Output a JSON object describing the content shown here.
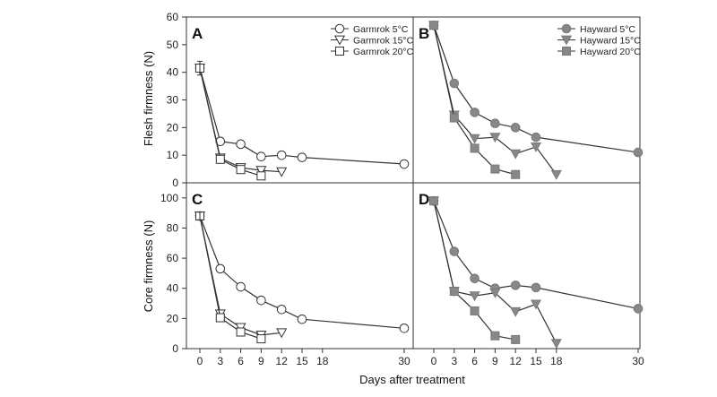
{
  "figure": {
    "xlabel": "Days after treatment",
    "ylabel_top": "Flesh firmness (N)",
    "ylabel_bottom": "Core firmness (N)"
  },
  "chart_data": [
    {
      "panel": "A",
      "type": "line",
      "title": "",
      "xlabel": "",
      "ylabel": "Flesh firmness (N)",
      "xticks": [
        0,
        3,
        6,
        9,
        12,
        15,
        18,
        30
      ],
      "yticks": [
        0,
        10,
        20,
        30,
        40,
        50,
        60
      ],
      "ylim": [
        0,
        60
      ],
      "legend": "top-right",
      "series": [
        {
          "name": "Garmrok 5°C",
          "marker": "circle-open",
          "x": [
            0,
            3,
            6,
            9,
            12,
            15,
            30
          ],
          "values": [
            41.5,
            15,
            14,
            9.5,
            10,
            9.2,
            6.8
          ]
        },
        {
          "name": "Garmrok 15°C",
          "marker": "triangle-open",
          "x": [
            0,
            3,
            6,
            9,
            12
          ],
          "values": [
            41.5,
            9,
            5.5,
            4.5,
            4
          ]
        },
        {
          "name": "Garmrok 20°C",
          "marker": "square-open",
          "x": [
            0,
            3,
            6,
            9
          ],
          "values": [
            41.5,
            8.5,
            4.8,
            2.5
          ]
        }
      ]
    },
    {
      "panel": "B",
      "type": "line",
      "title": "",
      "xlabel": "",
      "ylabel": "",
      "xticks": [
        0,
        3,
        6,
        9,
        12,
        15,
        18,
        30
      ],
      "ylim": [
        0,
        60
      ],
      "legend": "top-right",
      "series": [
        {
          "name": "Hayward 5°C",
          "marker": "circle-filled",
          "x": [
            0,
            3,
            6,
            9,
            12,
            15,
            30
          ],
          "values": [
            57,
            36,
            25.5,
            21.5,
            20,
            16.5,
            11
          ]
        },
        {
          "name": "Hayward 15°C",
          "marker": "triangle-filled",
          "x": [
            0,
            3,
            6,
            9,
            12,
            15,
            18
          ],
          "values": [
            57,
            24.5,
            16,
            16.5,
            10.5,
            13,
            3
          ]
        },
        {
          "name": "Hayward 20°C",
          "marker": "square-filled",
          "x": [
            0,
            3,
            6,
            9,
            12
          ],
          "values": [
            57,
            23.5,
            12.5,
            5,
            3
          ]
        }
      ]
    },
    {
      "panel": "C",
      "type": "line",
      "title": "",
      "xlabel": "",
      "ylabel": "Core firmness (N)",
      "xticks": [
        0,
        3,
        6,
        9,
        12,
        15,
        18,
        30
      ],
      "yticks": [
        0,
        20,
        40,
        60,
        80,
        100
      ],
      "ylim": [
        0,
        110
      ],
      "legend": "none",
      "series": [
        {
          "name": "Garmrok 5°C",
          "marker": "circle-open",
          "x": [
            0,
            3,
            6,
            9,
            12,
            15,
            30
          ],
          "values": [
            88,
            53,
            41,
            32,
            26,
            19.5,
            13.5
          ]
        },
        {
          "name": "Garmrok 15°C",
          "marker": "triangle-open",
          "x": [
            0,
            3,
            6,
            9,
            12
          ],
          "values": [
            88,
            23,
            14,
            9,
            10.5
          ]
        },
        {
          "name": "Garmrok 20°C",
          "marker": "square-open",
          "x": [
            0,
            3,
            6,
            9
          ],
          "values": [
            88,
            20.5,
            11,
            6.5
          ]
        }
      ]
    },
    {
      "panel": "D",
      "type": "line",
      "title": "",
      "xlabel": "",
      "ylabel": "",
      "xticks": [
        0,
        3,
        6,
        9,
        12,
        15,
        18,
        30
      ],
      "ylim": [
        0,
        110
      ],
      "legend": "none",
      "series": [
        {
          "name": "Hayward 5°C",
          "marker": "circle-filled",
          "x": [
            0,
            3,
            6,
            9,
            12,
            15,
            30
          ],
          "values": [
            98,
            64.5,
            46.5,
            40,
            42,
            40.5,
            26.5
          ]
        },
        {
          "name": "Hayward 15°C",
          "marker": "triangle-filled",
          "x": [
            0,
            3,
            6,
            9,
            12,
            15,
            18
          ],
          "values": [
            98,
            38,
            35,
            37,
            24.5,
            29.5,
            3.5
          ]
        },
        {
          "name": "Hayward 20°C",
          "marker": "square-filled",
          "x": [
            0,
            3,
            6,
            9,
            12
          ],
          "values": [
            98,
            38,
            25,
            8.5,
            6
          ]
        }
      ]
    }
  ]
}
